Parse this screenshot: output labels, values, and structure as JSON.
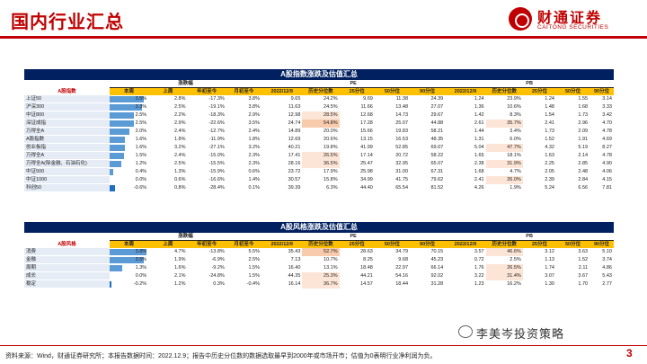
{
  "header": {
    "title": "国内行业汇总",
    "logo_cn": "财通证券",
    "logo_en": "CAITONG SECURITIES"
  },
  "groups": {
    "change": "涨跌幅",
    "pe": "PE",
    "pb": "PB"
  },
  "columns": [
    "本周",
    "上周",
    "年初至今",
    "月初至今",
    "2022/12/9",
    "历史分位数",
    "25分位",
    "50分位",
    "90分位",
    "2022/12/9",
    "历史分位数",
    "25分位",
    "50分位",
    "90分位"
  ],
  "table1": {
    "title": "A股指数涨跌及估值汇总",
    "category": "A股指数",
    "rows": [
      {
        "name": "上证50",
        "w": "3.5%",
        "lw": "2.8%",
        "ytd": "-17.3%",
        "mtd": "3.8%",
        "pe": "9.65",
        "pep": "24.2%",
        "pe25": "9.69",
        "pe50": "11.38",
        "pe90": "24.39",
        "pb": "1.24",
        "pbp": "23.9%",
        "pb25": "1.24",
        "pb50": "1.55",
        "pb90": "3.14"
      },
      {
        "name": "沪深300",
        "w": "3.3%",
        "lw": "2.5%",
        "ytd": "-19.1%",
        "mtd": "3.8%",
        "pe": "11.63",
        "pep": "24.5%",
        "pe25": "11.66",
        "pe50": "13.48",
        "pe90": "27.07",
        "pb": "1.36",
        "pbp": "10.6%",
        "pb25": "1.48",
        "pb50": "1.68",
        "pb90": "3.33"
      },
      {
        "name": "中证800",
        "w": "2.5%",
        "lw": "2.2%",
        "ytd": "-18.3%",
        "mtd": "2.9%",
        "pe": "12.98",
        "pep": "28.5%",
        "pe25": "12.68",
        "pe50": "14.73",
        "pe90": "29.67",
        "pb": "1.42",
        "pbp": "8.3%",
        "pb25": "1.54",
        "pb50": "1.73",
        "pb90": "3.42"
      },
      {
        "name": "深证成指",
        "w": "2.5%",
        "lw": "2.9%",
        "ytd": "-22.6%",
        "mtd": "3.5%",
        "pe": "24.74",
        "pep": "54.8%",
        "pe25": "17.28",
        "pe50": "25.07",
        "pe90": "44.88",
        "pb": "2.61",
        "pbp": "35.7%",
        "pb25": "2.41",
        "pb50": "2.96",
        "pb90": "4.70"
      },
      {
        "name": "万得全A",
        "w": "2.0%",
        "lw": "2.4%",
        "ytd": "-12.7%",
        "mtd": "2.4%",
        "pe": "14.89",
        "pep": "20.0%",
        "pe25": "15.66",
        "pe50": "19.83",
        "pe90": "58.21",
        "pb": "1.44",
        "pbp": "3.4%",
        "pb25": "1.73",
        "pb50": "2.09",
        "pb90": "4.78"
      },
      {
        "name": "A股指数",
        "w": "1.6%",
        "lw": "1.8%",
        "ytd": "-11.9%",
        "mtd": "1.8%",
        "pe": "12.69",
        "pep": "20.6%",
        "pe25": "13.15",
        "pe50": "16.53",
        "pe90": "48.35",
        "pb": "1.31",
        "pbp": "6.0%",
        "pb25": "1.52",
        "pb50": "1.91",
        "pb90": "4.69"
      },
      {
        "name": "创业板指",
        "w": "1.6%",
        "lw": "3.2%",
        "ytd": "-27.1%",
        "mtd": "3.2%",
        "pe": "40.21",
        "pep": "19.8%",
        "pe25": "41.99",
        "pe50": "52.85",
        "pe90": "69.07",
        "pb": "5.04",
        "pbp": "47.7%",
        "pb25": "4.32",
        "pb50": "5.19",
        "pb90": "8.27"
      },
      {
        "name": "万得全A",
        "w": "1.5%",
        "lw": "2.4%",
        "ytd": "-15.0%",
        "mtd": "2.3%",
        "pe": "17.41",
        "pep": "26.5%",
        "pe25": "17.14",
        "pe50": "20.72",
        "pe90": "58.22",
        "pb": "1.65",
        "pbp": "18.1%",
        "pb25": "1.63",
        "pb50": "2.14",
        "pb90": "4.78"
      },
      {
        "name": "万得全A(除金融、石油石化)",
        "w": "1.2%",
        "lw": "2.5%",
        "ytd": "-15.5%",
        "mtd": "2.3%",
        "pe": "28.16",
        "pep": "36.5%",
        "pe25": "25.47",
        "pe50": "32.95",
        "pe90": "65.07",
        "pb": "2.38",
        "pbp": "31.9%",
        "pb25": "2.25",
        "pb50": "2.85",
        "pb90": "4.90"
      },
      {
        "name": "中证500",
        "w": "0.4%",
        "lw": "1.3%",
        "ytd": "-15.9%",
        "mtd": "0.6%",
        "pe": "23.72",
        "pep": "17.9%",
        "pe25": "25.98",
        "pe50": "31.00",
        "pe90": "67.31",
        "pb": "1.68",
        "pbp": "4.7%",
        "pb25": "2.05",
        "pb50": "2.48",
        "pb90": "4.06"
      },
      {
        "name": "中证1000",
        "w": "0.0%",
        "lw": "0.6%",
        "ytd": "-16.6%",
        "mtd": "1.4%",
        "pe": "30.57",
        "pep": "15.8%",
        "pe25": "34.99",
        "pe50": "41.75",
        "pe90": "79.62",
        "pb": "2.41",
        "pbp": "26.0%",
        "pb25": "2.39",
        "pb50": "2.84",
        "pb90": "4.15"
      },
      {
        "name": "科创50",
        "w": "-0.6%",
        "lw": "0.8%",
        "ytd": "-28.4%",
        "mtd": "0.1%",
        "pe": "39.39",
        "pep": "6.3%",
        "pe25": "44.40",
        "pe50": "65.54",
        "pe90": "81.52",
        "pb": "4.26",
        "pbp": "1.9%",
        "pb25": "5.24",
        "pb50": "6.56",
        "pb90": "7.81"
      }
    ]
  },
  "table2": {
    "title": "A股风格涨跌及估值汇总",
    "category": "A股风格",
    "rows": [
      {
        "name": "消费",
        "w": "3.8%",
        "lw": "4.7%",
        "ytd": "-13.8%",
        "mtd": "5.5%",
        "pe": "35.43",
        "pep": "52.7%",
        "pe25": "28.63",
        "pe50": "34.79",
        "pe90": "70.15",
        "pb": "3.57",
        "pbp": "46.6%",
        "pb25": "3.12",
        "pb50": "3.63",
        "pb90": "5.10"
      },
      {
        "name": "金融",
        "w": "3.5%",
        "lw": "1.9%",
        "ytd": "-6.9%",
        "mtd": "2.5%",
        "pe": "7.13",
        "pep": "10.7%",
        "pe25": "8.25",
        "pe50": "9.68",
        "pe90": "45.23",
        "pb": "0.72",
        "pbp": "2.5%",
        "pb25": "1.13",
        "pb50": "1.52",
        "pb90": "3.74"
      },
      {
        "name": "周期",
        "w": "1.3%",
        "lw": "1.6%",
        "ytd": "-9.2%",
        "mtd": "1.5%",
        "pe": "16.40",
        "pep": "13.1%",
        "pe25": "18.48",
        "pe50": "22.97",
        "pe90": "66.14",
        "pb": "1.76",
        "pbp": "26.5%",
        "pb25": "1.74",
        "pb50": "2.11",
        "pb90": "4.86"
      },
      {
        "name": "成长",
        "w": "0.0%",
        "lw": "2.1%",
        "ytd": "-24.8%",
        "mtd": "1.5%",
        "pe": "44.35",
        "pep": "25.3%",
        "pe25": "44.21",
        "pe50": "54.16",
        "pe90": "92.02",
        "pb": "3.22",
        "pbp": "31.4%",
        "pb25": "3.07",
        "pb50": "3.67",
        "pb90": "5.43"
      },
      {
        "name": "稳定",
        "w": "-0.2%",
        "lw": "1.2%",
        "ytd": "0.3%",
        "mtd": "-0.4%",
        "pe": "16.14",
        "pep": "36.7%",
        "pe25": "14.57",
        "pe50": "18.44",
        "pe90": "31.28",
        "pb": "1.23",
        "pbp": "16.2%",
        "pb25": "1.30",
        "pb50": "1.70",
        "pb90": "2.77"
      }
    ]
  },
  "footer": {
    "note": "资料来源：Wind，财通证券研究所；本报告数据时间：2022.12.9；报告中历史分位数的数据选取最早到2000年或市场开市；估值为0表明行业净利润为负。",
    "watermark": "李美岑投资策略",
    "page": "3"
  },
  "colors": {
    "brand_red": "#c00000",
    "title_navy": "#002060",
    "header_gold": "#ffc000",
    "bar_blue": "#5b9bd5",
    "heat_high": "#f8cbad",
    "name_bg": "#e6ecf6"
  }
}
